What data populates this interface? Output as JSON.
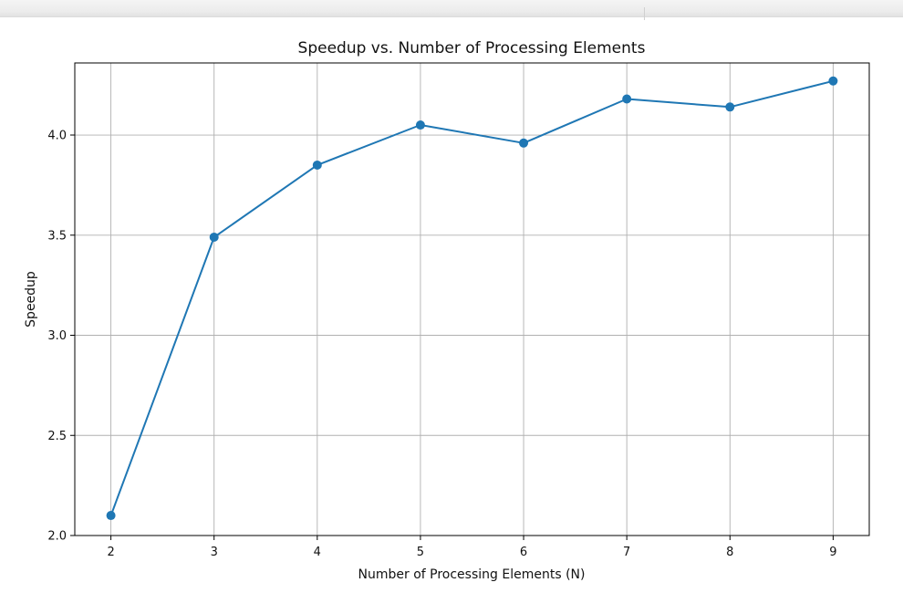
{
  "chart_data": {
    "type": "line",
    "title": "Speedup vs. Number of Processing Elements",
    "xlabel": "Number of Processing Elements (N)",
    "ylabel": "Speedup",
    "x": [
      2,
      3,
      4,
      5,
      6,
      7,
      8,
      9
    ],
    "series": [
      {
        "values": [
          2.1,
          3.49,
          3.85,
          4.05,
          3.96,
          4.18,
          4.14,
          4.27
        ],
        "color": "#1f77b4",
        "marker": "circle"
      }
    ],
    "xticks": [
      "2",
      "3",
      "4",
      "5",
      "6",
      "7",
      "8",
      "9"
    ],
    "yticks": [
      "2.0",
      "2.5",
      "3.0",
      "3.5",
      "4.0"
    ],
    "xlim": [
      1.65,
      9.35
    ],
    "ylim": [
      2.0,
      4.36
    ],
    "grid": true
  }
}
